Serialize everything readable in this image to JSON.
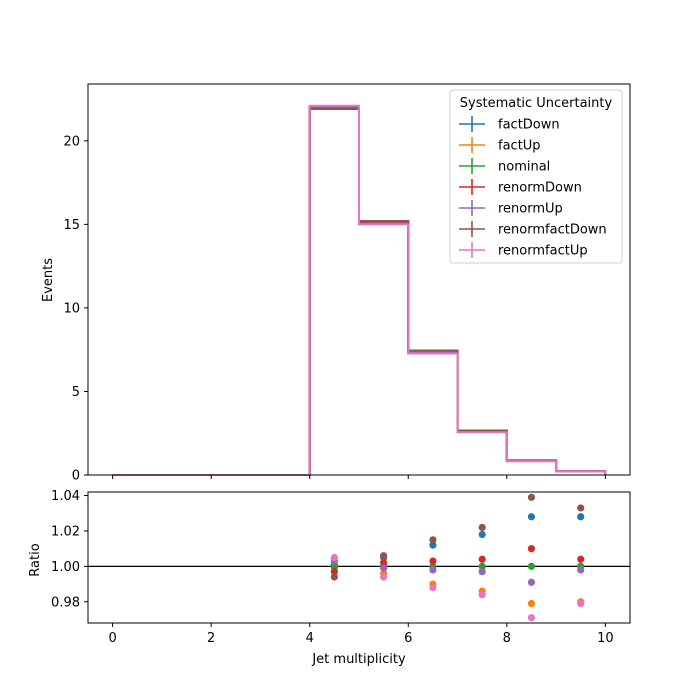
{
  "chart_data": {
    "type": "step",
    "x_bin_edges": [
      0,
      1,
      2,
      3,
      4,
      5,
      6,
      7,
      8,
      9,
      10
    ],
    "bin_centers": [
      0.5,
      1.5,
      2.5,
      3.5,
      4.5,
      5.5,
      6.5,
      7.5,
      8.5,
      9.5
    ],
    "xlabel": "Jet multiplicity",
    "xlim": [
      -0.5,
      10.5
    ],
    "x_ticks": [
      0,
      2,
      4,
      6,
      8,
      10
    ],
    "main_panel": {
      "ylabel": "Events",
      "ylim": [
        0,
        23.4
      ],
      "y_ticks": [
        0,
        5,
        10,
        15,
        20
      ],
      "legend": {
        "title": "Systematic Uncertainty",
        "placement": "upper right"
      },
      "series": [
        {
          "name": "factDown",
          "color": "#1f77b4",
          "values": [
            0,
            0,
            0,
            0,
            22.0,
            15.1,
            7.4,
            2.65,
            0.87,
            0.23
          ]
        },
        {
          "name": "factUp",
          "color": "#ff7f0e",
          "values": [
            0,
            0,
            0,
            0,
            22.0,
            15.1,
            7.3,
            2.58,
            0.83,
            0.22
          ]
        },
        {
          "name": "nominal",
          "color": "#2ca02c",
          "values": [
            0,
            0,
            0,
            0,
            22.0,
            15.1,
            7.35,
            2.6,
            0.85,
            0.22
          ]
        },
        {
          "name": "renormDown",
          "color": "#d62728",
          "values": [
            0,
            0,
            0,
            0,
            21.95,
            15.15,
            7.37,
            2.61,
            0.86,
            0.22
          ]
        },
        {
          "name": "renormUp",
          "color": "#9467bd",
          "values": [
            0,
            0,
            0,
            0,
            22.05,
            15.05,
            7.33,
            2.59,
            0.84,
            0.22
          ]
        },
        {
          "name": "renormfactDown",
          "color": "#8c564b",
          "values": [
            0,
            0,
            0,
            0,
            21.9,
            15.2,
            7.45,
            2.66,
            0.88,
            0.23
          ]
        },
        {
          "name": "renormfactUp",
          "color": "#e377c2",
          "values": [
            0,
            0,
            0,
            0,
            22.1,
            15.0,
            7.27,
            2.56,
            0.82,
            0.22
          ]
        }
      ]
    },
    "ratio_panel": {
      "ylabel": "Ratio",
      "ylim": [
        0.968,
        1.042
      ],
      "y_ticks": [
        0.98,
        1.0,
        1.02,
        1.04
      ],
      "y_tick_labels": [
        "0.98",
        "1.00",
        "1.02",
        "1.04"
      ],
      "reference_line": 1.0,
      "series": [
        {
          "name": "factDown",
          "color": "#1f77b4",
          "x": [
            4.5,
            5.5,
            6.5,
            7.5,
            8.5,
            9.5
          ],
          "values": [
            1.001,
            1.005,
            1.012,
            1.018,
            1.028,
            1.028
          ]
        },
        {
          "name": "factUp",
          "color": "#ff7f0e",
          "x": [
            4.5,
            5.5,
            6.5,
            7.5,
            8.5,
            9.5
          ],
          "values": [
            0.999,
            0.996,
            0.99,
            0.986,
            0.979,
            0.98
          ]
        },
        {
          "name": "nominal",
          "color": "#2ca02c",
          "x": [
            4.5,
            5.5,
            6.5,
            7.5,
            8.5,
            9.5
          ],
          "values": [
            1.0,
            1.0,
            1.0,
            1.0,
            1.0,
            1.0
          ]
        },
        {
          "name": "renormDown",
          "color": "#d62728",
          "x": [
            4.5,
            5.5,
            6.5,
            7.5,
            8.5,
            9.5
          ],
          "values": [
            0.997,
            1.002,
            1.003,
            1.004,
            1.01,
            1.004
          ]
        },
        {
          "name": "renormUp",
          "color": "#9467bd",
          "x": [
            4.5,
            5.5,
            6.5,
            7.5,
            8.5,
            9.5
          ],
          "values": [
            1.003,
            0.999,
            0.998,
            0.997,
            0.991,
            0.998
          ]
        },
        {
          "name": "renormfactDown",
          "color": "#8c564b",
          "x": [
            4.5,
            5.5,
            6.5,
            7.5,
            8.5,
            9.5
          ],
          "values": [
            0.994,
            1.006,
            1.015,
            1.022,
            1.039,
            1.033
          ]
        },
        {
          "name": "renormfactUp",
          "color": "#e377c2",
          "x": [
            4.5,
            5.5,
            6.5,
            7.5,
            8.5,
            9.5
          ],
          "values": [
            1.005,
            0.994,
            0.988,
            0.984,
            0.971,
            0.979
          ]
        }
      ]
    }
  }
}
